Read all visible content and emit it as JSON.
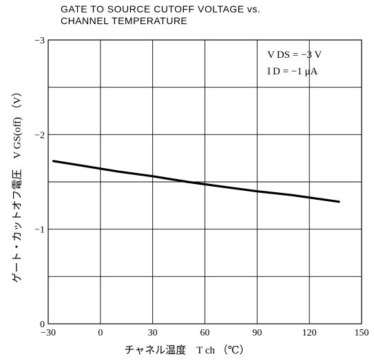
{
  "title_lines": [
    "GATE TO SOURCE CUTOFF VOLTAGE vs.",
    "CHANNEL TEMPERATURE"
  ],
  "conditions": [
    "V DS = −3  V",
    "I D = −1  μA"
  ],
  "chart_data": {
    "type": "line",
    "title": "GATE TO SOURCE CUTOFF VOLTAGE vs. CHANNEL TEMPERATURE",
    "xlabel": "チャネル温度　T ch （℃）",
    "ylabel": "ゲート・カットオフ電圧　V GS(off) （V）",
    "xlim": [
      -30,
      150
    ],
    "ylim": [
      0,
      -3
    ],
    "x_ticks": [
      -30,
      0,
      30,
      60,
      90,
      120,
      150
    ],
    "x_tick_labels": [
      "−30",
      "0",
      "30",
      "60",
      "90",
      "120",
      "150"
    ],
    "y_ticks": [
      0,
      -1,
      -2,
      -3
    ],
    "y_tick_labels": [
      "0",
      "−1",
      "−2",
      "−3"
    ],
    "grid": true,
    "series": [
      {
        "x": [
          -27,
          -10,
          0,
          10,
          30,
          50,
          70,
          90,
          110,
          137
        ],
        "y": [
          -1.72,
          -1.67,
          -1.64,
          -1.61,
          -1.56,
          -1.5,
          -1.45,
          -1.4,
          -1.36,
          -1.29
        ]
      }
    ]
  }
}
